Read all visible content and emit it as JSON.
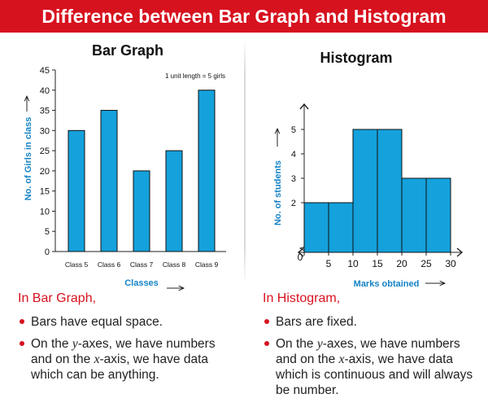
{
  "banner": {
    "title": "Difference between Bar Graph and Histogram"
  },
  "colors": {
    "banner": "#d7121f",
    "bar": "#14a1dc",
    "axis_label": "#1583c6",
    "accent": "#d7121f"
  },
  "chart_data": [
    {
      "type": "bar",
      "title": "Bar Graph",
      "categories": [
        "Class 5",
        "Class 6",
        "Class 7",
        "Class 8",
        "Class 9"
      ],
      "values": [
        30,
        35,
        20,
        25,
        40
      ],
      "xlabel": "Classes",
      "ylabel": "No. of Girls in class",
      "ylim": [
        0,
        45
      ],
      "yticks": [
        "0",
        "5",
        "10",
        "15",
        "20",
        "25",
        "30",
        "35",
        "40",
        "45"
      ],
      "annotation": "1 unit length = 5 girls",
      "grid": false
    },
    {
      "type": "bar",
      "title": "Histogram",
      "bins": [
        [
          0,
          5
        ],
        [
          5,
          10
        ],
        [
          10,
          15
        ],
        [
          15,
          20
        ],
        [
          20,
          25
        ],
        [
          25,
          30
        ]
      ],
      "values": [
        2,
        2,
        5,
        5,
        3,
        3
      ],
      "xticks": [
        "0",
        "5",
        "10",
        "15",
        "20",
        "25",
        "30"
      ],
      "yticks": [
        "2",
        "3",
        "4",
        "5"
      ],
      "xlabel": "Marks obtained",
      "ylabel": "No. of students",
      "xlim": [
        0,
        30
      ],
      "y_axis_break": true,
      "grid": false
    }
  ],
  "left_panel": {
    "heading": "In Bar Graph,",
    "bullet1": "Bars have equal space.",
    "bullet2_a": "On the ",
    "bullet2_b": "y",
    "bullet2_c": "-axes, we have numbers and on the ",
    "bullet2_d": "x",
    "bullet2_e": "-axis, we have data which can be anything."
  },
  "right_panel": {
    "heading": "In Histogram,",
    "bullet1": "Bars are fixed.",
    "bullet2_a": "On the ",
    "bullet2_b": "y",
    "bullet2_c": "-axes, we have numbers and on the ",
    "bullet2_d": "x",
    "bullet2_e": "-axis, we have data which is continuous and will always be number."
  }
}
